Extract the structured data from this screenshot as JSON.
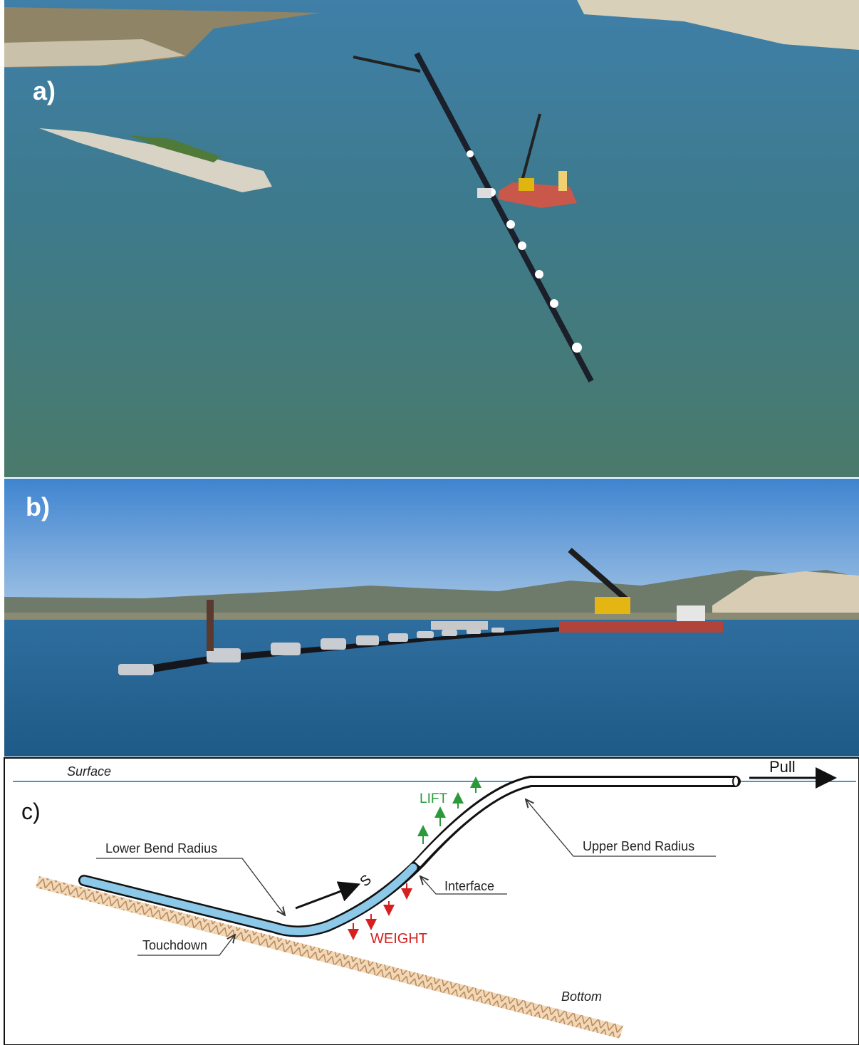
{
  "panel_a": {
    "label": "a)"
  },
  "panel_b": {
    "label": "b)"
  },
  "panel_c": {
    "label": "c)",
    "surface": "Surface",
    "pull": "Pull",
    "lift": "LIFT",
    "lower_bend_radius": "Lower Bend Radius",
    "upper_bend_radius": "Upper Bend Radius",
    "interface": "Interface",
    "s": "S",
    "weight": "WEIGHT",
    "touchdown": "Touchdown",
    "bottom": "Bottom"
  }
}
